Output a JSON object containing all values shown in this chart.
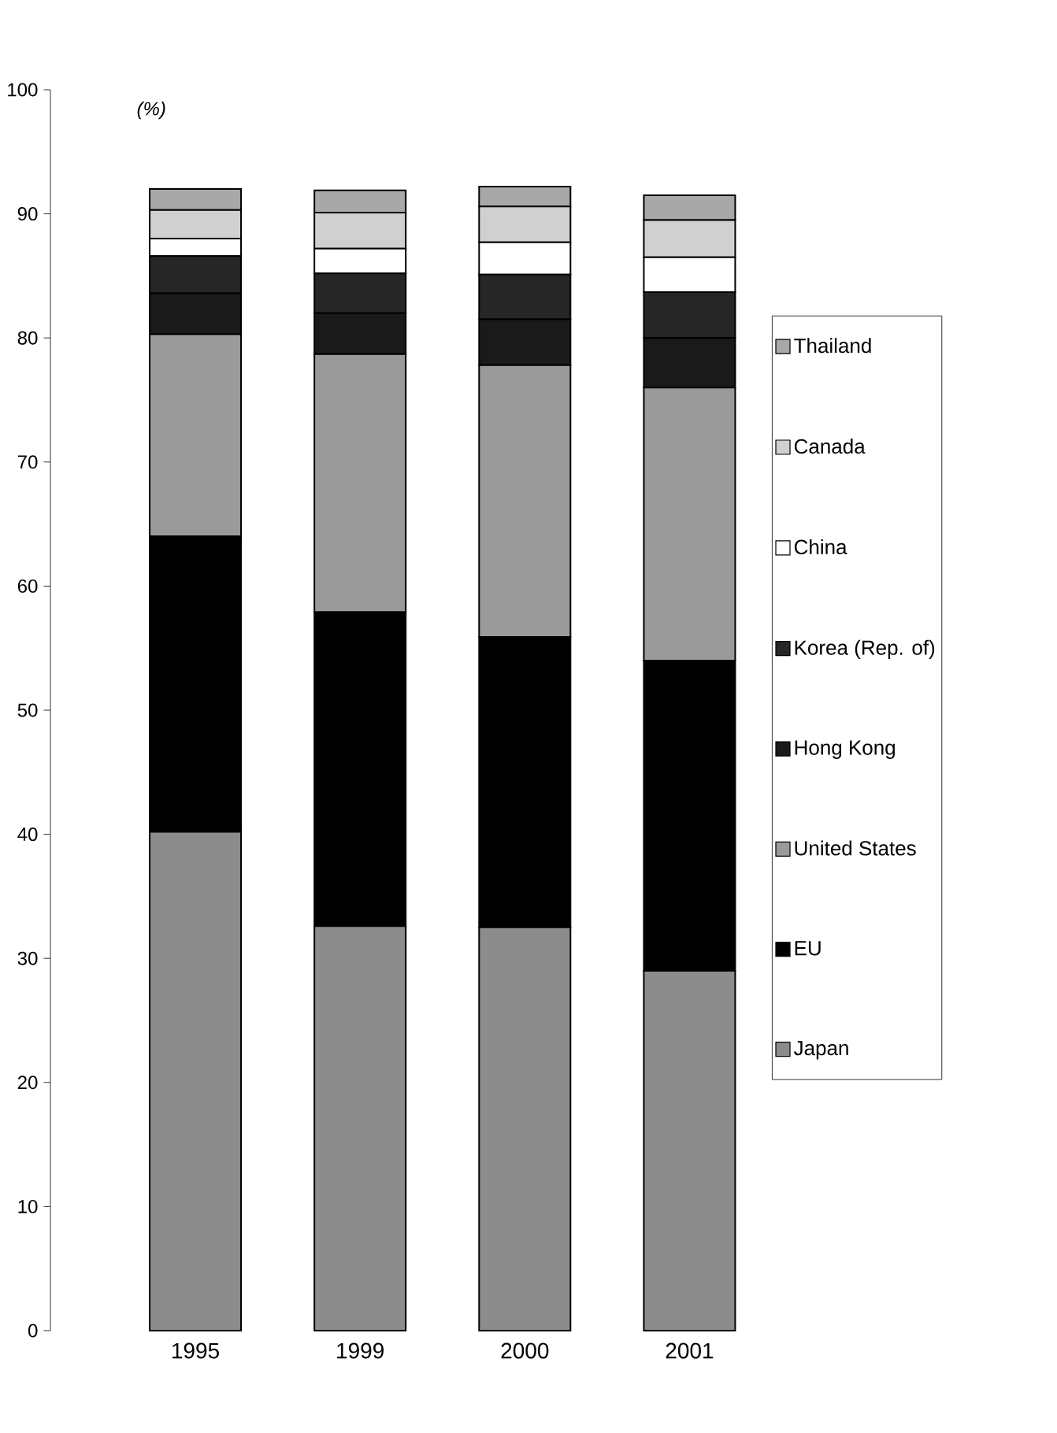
{
  "chart_data": {
    "type": "bar",
    "stacked": true,
    "ylabel": "(%)",
    "categories": [
      "1995",
      "1999",
      "2000",
      "2001"
    ],
    "series": [
      {
        "name": "Japan",
        "color": "#8c8c8c",
        "values": [
          40.2,
          32.6,
          32.5,
          29.0
        ]
      },
      {
        "name": "EU",
        "color": "#000000",
        "values": [
          23.8,
          25.3,
          23.4,
          25.0
        ]
      },
      {
        "name": "United States",
        "color": "#9a9a9a",
        "values": [
          16.3,
          20.8,
          21.9,
          22.0
        ]
      },
      {
        "name": "Hong Kong",
        "color": "#1a1a1a",
        "values": [
          3.3,
          3.3,
          3.7,
          4.0
        ]
      },
      {
        "name": "Korea (Rep. of)",
        "color": "#262626",
        "values": [
          3.0,
          3.2,
          3.6,
          3.7
        ]
      },
      {
        "name": "China",
        "color": "#ffffff",
        "values": [
          1.4,
          2.0,
          2.6,
          2.8
        ]
      },
      {
        "name": "Canada",
        "color": "#d0d0d0",
        "values": [
          2.3,
          2.9,
          2.9,
          3.0
        ]
      },
      {
        "name": "Thailand",
        "color": "#a8a8a8",
        "values": [
          1.7,
          1.8,
          1.6,
          2.0
        ]
      }
    ],
    "ylim": [
      0,
      100
    ],
    "yticks": [
      0,
      10,
      20,
      30,
      40,
      50,
      60,
      70,
      80,
      90,
      100
    ],
    "grid": false,
    "legend": "right"
  }
}
